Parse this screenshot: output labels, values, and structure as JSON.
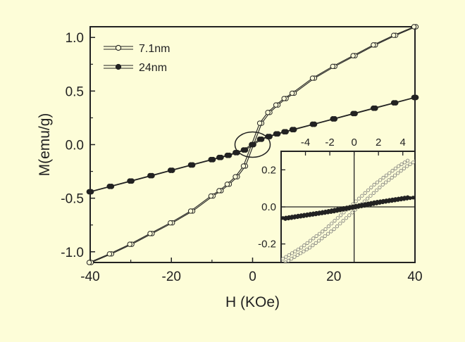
{
  "chart_data": [
    {
      "type": "scatter",
      "xlabel": "H (KOe)",
      "ylabel": "M(emu/g)",
      "xlim": [
        -40,
        40
      ],
      "ylim": [
        -1.1,
        1.1
      ],
      "xticks": [
        "-40",
        "-20",
        "0",
        "20",
        "40"
      ],
      "yticks": [
        "-1.0",
        "-0.5",
        "0.0",
        "0.5",
        "1.0"
      ],
      "grid": false,
      "legend_position": "top-left",
      "series": [
        {
          "name": "7.1nm",
          "marker": "open-circle",
          "x": [
            -40,
            -35,
            -30,
            -25,
            -20,
            -15,
            -10,
            -8,
            -6,
            -4,
            -2,
            0,
            2,
            4,
            6,
            8,
            10,
            15,
            20,
            25,
            30,
            35,
            40
          ],
          "y": [
            -1.1,
            -1.02,
            -0.93,
            -0.83,
            -0.73,
            -0.62,
            -0.48,
            -0.43,
            -0.37,
            -0.3,
            -0.2,
            0.0,
            0.2,
            0.3,
            0.37,
            0.43,
            0.48,
            0.62,
            0.73,
            0.83,
            0.93,
            1.02,
            1.1
          ]
        },
        {
          "name": "24nm",
          "marker": "filled-circle",
          "x": [
            -40,
            -35,
            -30,
            -25,
            -20,
            -15,
            -10,
            -8,
            -6,
            -4,
            -2,
            0,
            2,
            4,
            6,
            8,
            10,
            15,
            20,
            25,
            30,
            35,
            40
          ],
          "y": [
            -0.44,
            -0.39,
            -0.34,
            -0.29,
            -0.24,
            -0.19,
            -0.14,
            -0.12,
            -0.1,
            -0.075,
            -0.05,
            0.0,
            0.05,
            0.075,
            0.1,
            0.12,
            0.14,
            0.19,
            0.24,
            0.29,
            0.34,
            0.39,
            0.44
          ]
        }
      ]
    },
    {
      "type": "scatter",
      "xlim": [
        -6,
        5
      ],
      "ylim": [
        -0.3,
        0.3
      ],
      "xticks": [
        "-4",
        "-2",
        "0",
        "2",
        "4"
      ],
      "yticks": [
        "-0.2",
        "0.0",
        "0.2"
      ],
      "legend_position": "none",
      "series": [
        {
          "marker": "open-circle",
          "x": [
            -6,
            -5,
            -4,
            -3,
            -2,
            -1,
            0,
            1,
            2,
            3,
            4,
            5
          ],
          "y": [
            -0.3,
            -0.26,
            -0.22,
            -0.17,
            -0.12,
            -0.06,
            0.0,
            0.06,
            0.12,
            0.17,
            0.22,
            0.26
          ]
        },
        {
          "marker": "filled-circle",
          "x": [
            -6,
            -5,
            -4,
            -3,
            -2,
            -1,
            0,
            1,
            2,
            3,
            4,
            5
          ],
          "y": [
            -0.065,
            -0.055,
            -0.045,
            -0.035,
            -0.025,
            -0.012,
            0.0,
            0.012,
            0.025,
            0.035,
            0.045,
            0.055
          ]
        }
      ]
    }
  ]
}
